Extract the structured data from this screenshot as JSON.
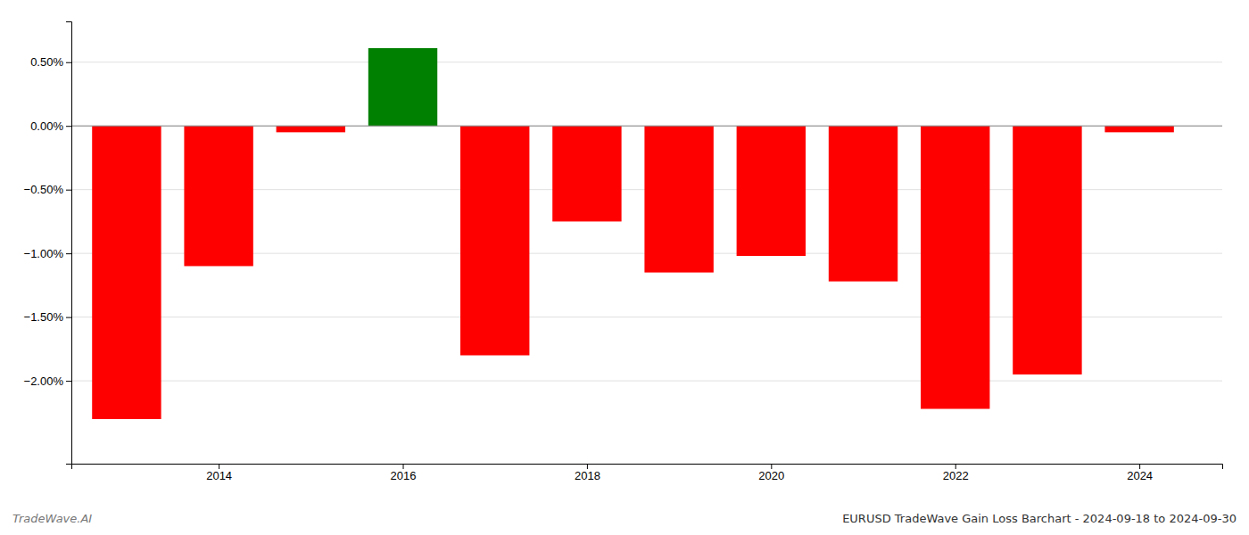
{
  "chart_data": {
    "type": "bar",
    "title": "EURUSD TradeWave Gain Loss Barchart - 2024-09-18 to 2024-09-30",
    "annotations": [
      "TradeWave.AI"
    ],
    "x": [
      2013,
      2014,
      2015,
      2016,
      2017,
      2018,
      2019,
      2020,
      2021,
      2022,
      2023,
      2024
    ],
    "values": [
      -2.3,
      -1.1,
      -0.05,
      0.61,
      -1.8,
      -0.75,
      -1.15,
      -1.02,
      -1.22,
      -2.22,
      -1.95,
      -0.05
    ],
    "colors": [
      "#ff0000",
      "#ff0000",
      "#ff0000",
      "#008000",
      "#ff0000",
      "#ff0000",
      "#ff0000",
      "#ff0000",
      "#ff0000",
      "#ff0000",
      "#ff0000",
      "#ff0000"
    ],
    "xlim": [
      2012.4,
      2024.9
    ],
    "xticks": [
      2014,
      2016,
      2018,
      2020,
      2022,
      2024
    ],
    "ylim": [
      -2.65,
      0.82
    ],
    "yticks": [
      {
        "value": 0.5,
        "label": "0.50%"
      },
      {
        "value": 0.0,
        "label": "0.00%"
      },
      {
        "value": -0.5,
        "label": "−0.50%"
      },
      {
        "value": -1.0,
        "label": "−1.00%"
      },
      {
        "value": -1.5,
        "label": "−1.50%"
      },
      {
        "value": -2.0,
        "label": "−2.00%"
      }
    ],
    "grid": true
  }
}
